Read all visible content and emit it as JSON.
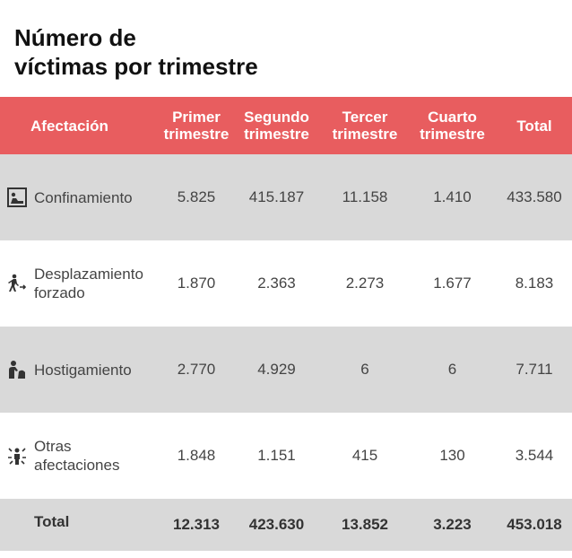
{
  "title": "Número de\n víctimas por trimestre",
  "chart_data": {
    "type": "table",
    "columns": [
      "Afectación",
      "Primer trimestre",
      "Segundo trimestre",
      "Tercer trimestre",
      "Cuarto trimestre",
      "Total"
    ],
    "rows": [
      {
        "name": "Confinamiento",
        "icon": "confinement-icon",
        "values": [
          "5.825",
          "415.187",
          "11.158",
          "1.410",
          "433.580"
        ]
      },
      {
        "name": "Desplazamiento\nforzado",
        "icon": "forced-displacement-icon",
        "values": [
          "1.870",
          "2.363",
          "2.273",
          "1.677",
          "8.183"
        ]
      },
      {
        "name": "Hostigamiento",
        "icon": "harassment-icon",
        "values": [
          "2.770",
          "4.929",
          "6",
          "6",
          "7.711"
        ]
      },
      {
        "name": "Otras\nafectaciones",
        "icon": "other-effects-icon",
        "values": [
          "1.848",
          "1.151",
          "415",
          "130",
          "3.544"
        ]
      }
    ],
    "totals": {
      "label": "Total",
      "values": [
        "12.313",
        "423.630",
        "13.852",
        "3.223",
        "453.018"
      ]
    }
  },
  "colors": {
    "header_bg": "#e85d5f",
    "row_alt_bg": "#d9d9d9",
    "icon": "#333333"
  }
}
